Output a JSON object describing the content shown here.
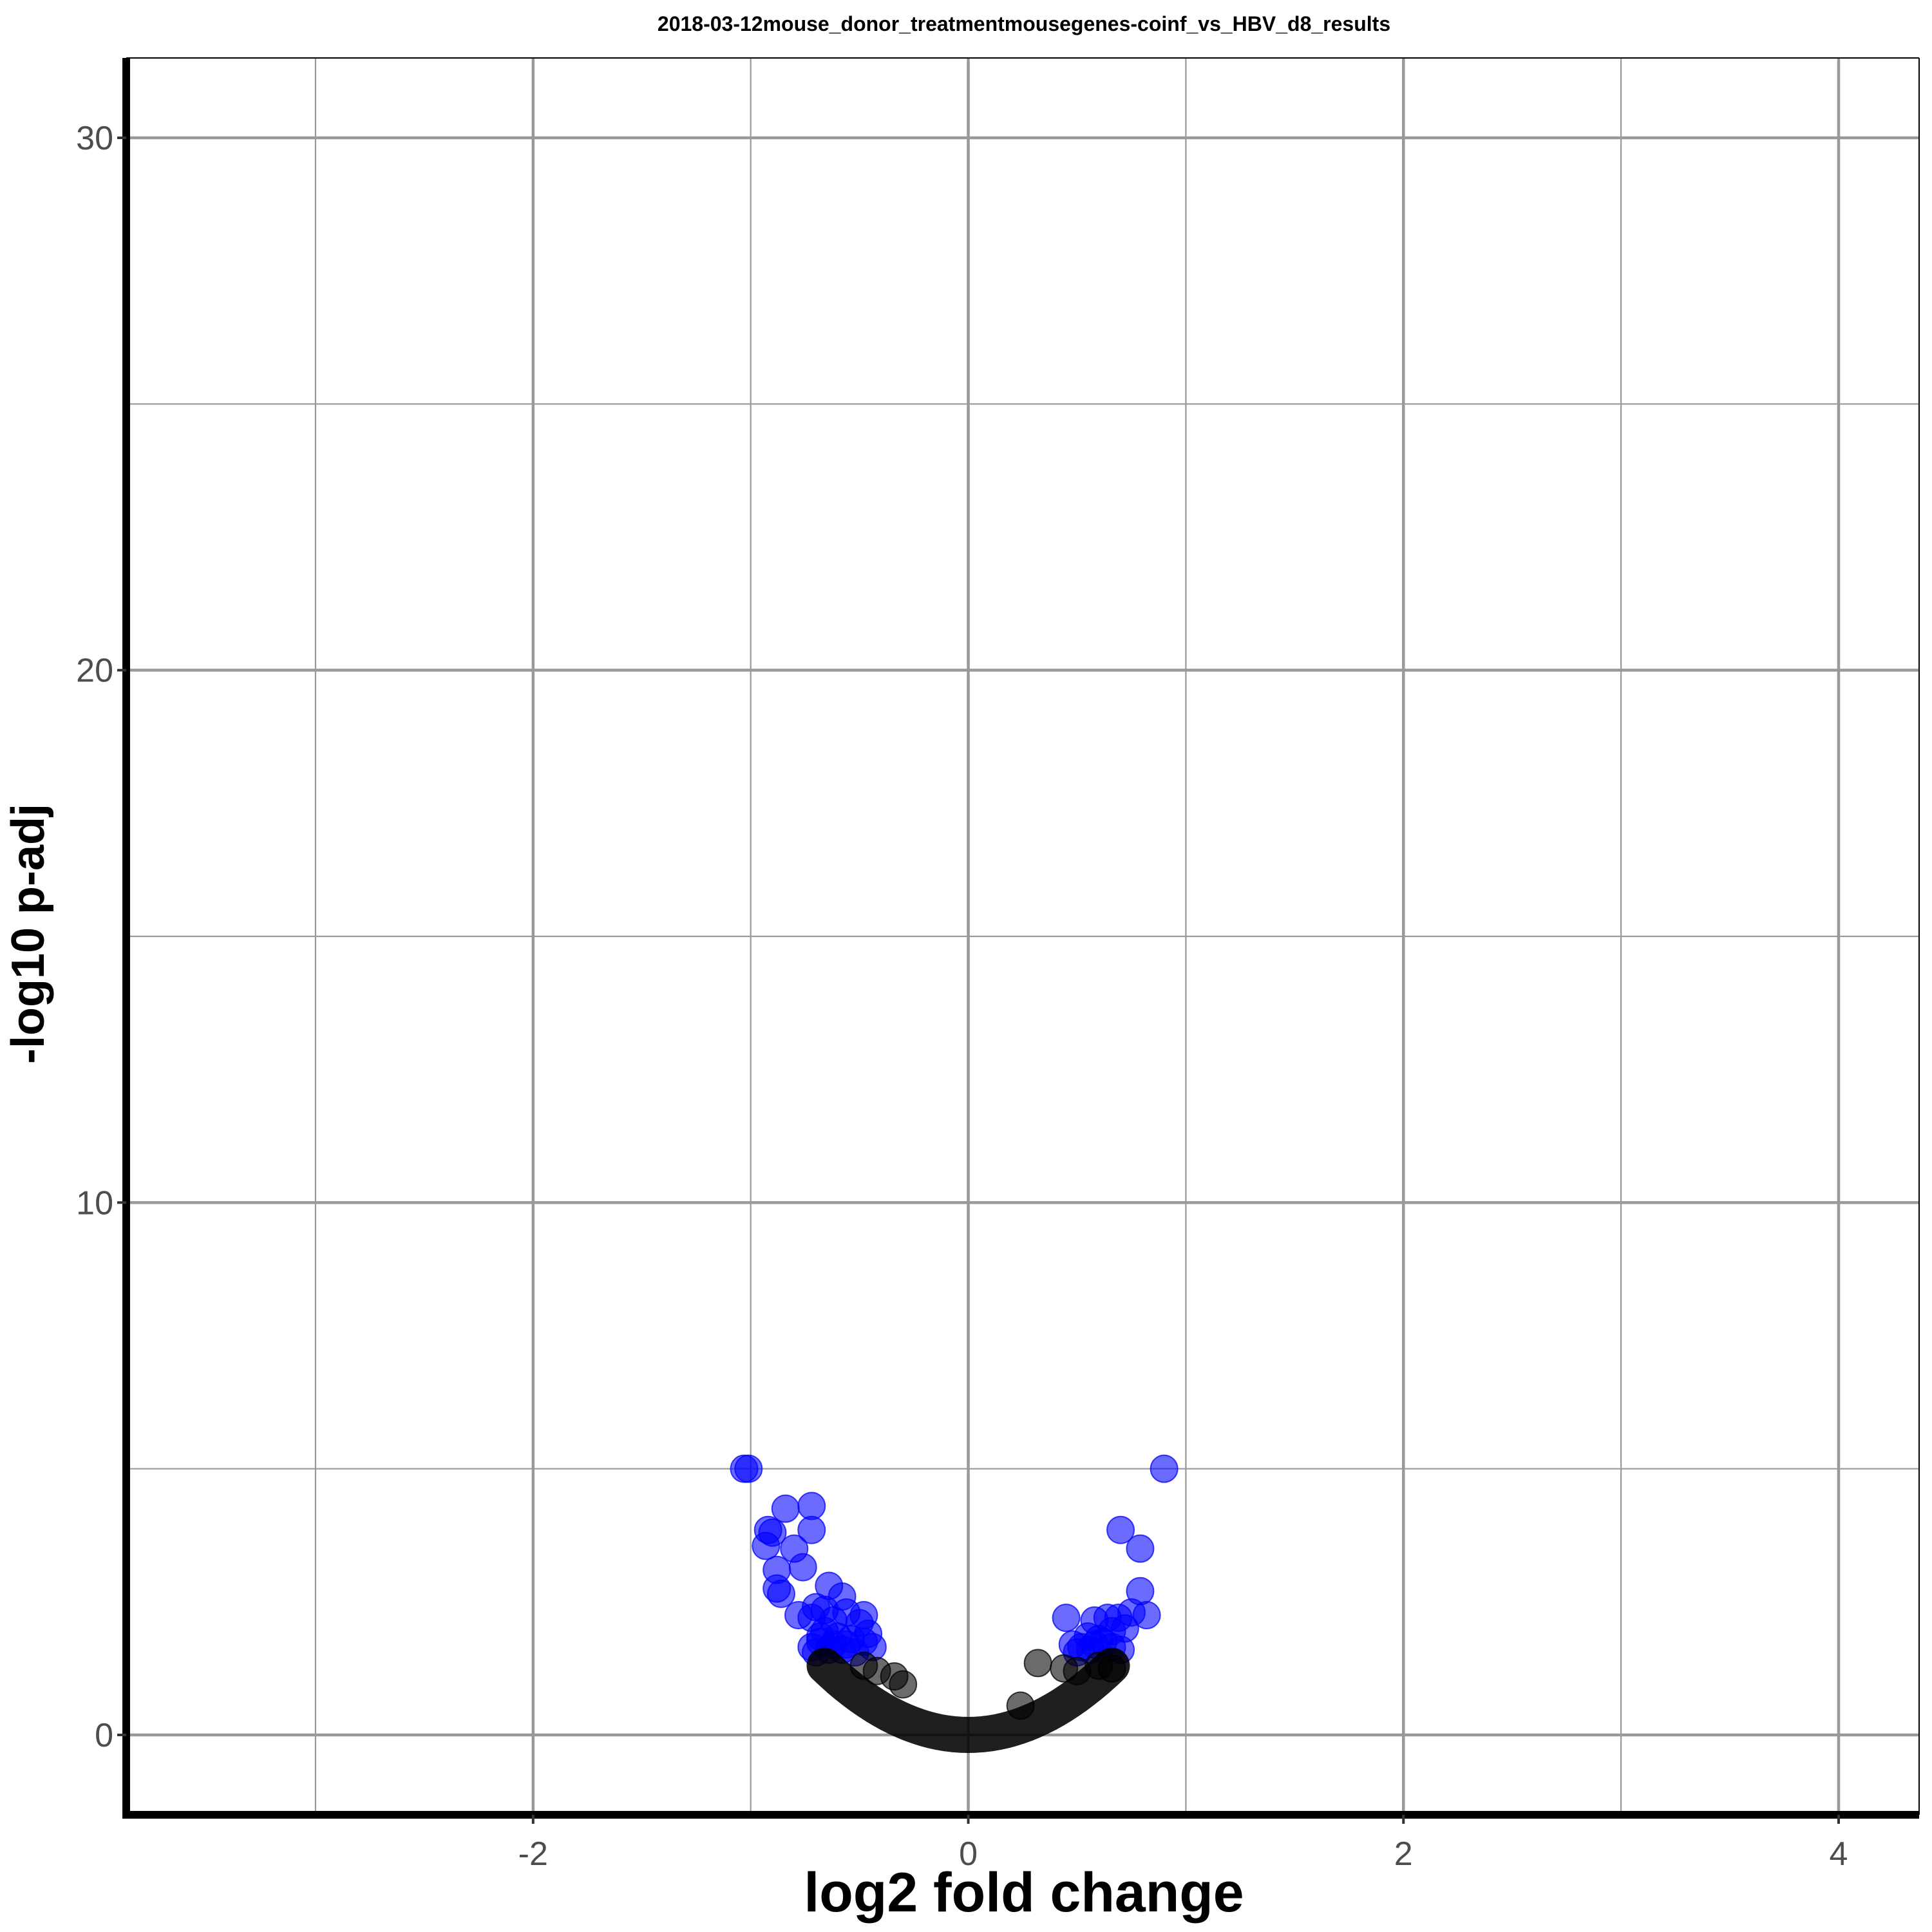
{
  "chart_data": {
    "type": "scatter",
    "title": "2018-03-12mouse_donor_treatmentmousegenes-coinf_vs_HBV_d8_results",
    "xlabel": "log2 fold change",
    "ylabel": "-log10 p-adj",
    "xlim": [
      -3.87,
      4.37
    ],
    "ylim": [
      -1.5,
      31.5
    ],
    "x_ticks": [
      -2,
      0,
      2,
      4
    ],
    "x_tick_labels": [
      "-2",
      "0",
      "2",
      "4"
    ],
    "y_ticks": [
      0,
      10,
      20,
      30
    ],
    "y_tick_labels": [
      "0",
      "10",
      "20",
      "30"
    ],
    "x_minor_gridlines": [
      -3,
      -1,
      1,
      3
    ],
    "y_minor_gridlines": [
      5,
      15,
      25
    ],
    "grid": true,
    "legend": "none",
    "colors": {
      "significant": "#0000ff",
      "not_significant": "#000000",
      "grid": "#999999",
      "axis": "#000000"
    },
    "series": [
      {
        "color": "#0000ff",
        "points": [
          [
            -1.03,
            5.0
          ],
          [
            -1.01,
            5.0
          ],
          [
            -0.92,
            3.85
          ],
          [
            -0.9,
            3.8
          ],
          [
            -0.93,
            3.55
          ],
          [
            -0.84,
            4.25
          ],
          [
            -0.72,
            4.3
          ],
          [
            -0.72,
            3.85
          ],
          [
            -0.8,
            3.5
          ],
          [
            -0.76,
            3.15
          ],
          [
            -0.88,
            3.1
          ],
          [
            -0.88,
            2.75
          ],
          [
            -0.86,
            2.65
          ],
          [
            -0.64,
            2.8
          ],
          [
            -0.58,
            2.6
          ],
          [
            -0.7,
            2.4
          ],
          [
            -0.78,
            2.25
          ],
          [
            -0.72,
            2.2
          ],
          [
            -0.66,
            2.35
          ],
          [
            -0.62,
            2.15
          ],
          [
            -0.56,
            2.3
          ],
          [
            -0.48,
            2.25
          ],
          [
            -0.5,
            2.1
          ],
          [
            -0.66,
            1.95
          ],
          [
            -0.6,
            1.85
          ],
          [
            -0.46,
            1.9
          ],
          [
            -0.68,
            1.75
          ],
          [
            -0.72,
            1.65
          ],
          [
            -0.56,
            1.7
          ],
          [
            -0.44,
            1.65
          ],
          [
            -0.52,
            1.55
          ],
          [
            -0.64,
            1.6
          ],
          [
            -0.7,
            1.55
          ],
          [
            -0.58,
            1.6
          ],
          [
            -0.48,
            1.75
          ],
          [
            -0.62,
            1.7
          ],
          [
            -0.54,
            1.8
          ],
          [
            -0.68,
            1.85
          ],
          [
            0.9,
            5.0
          ],
          [
            0.7,
            3.85
          ],
          [
            0.79,
            3.5
          ],
          [
            0.79,
            2.7
          ],
          [
            0.82,
            2.25
          ],
          [
            0.75,
            2.3
          ],
          [
            0.69,
            2.2
          ],
          [
            0.64,
            2.2
          ],
          [
            0.58,
            2.15
          ],
          [
            0.45,
            2.2
          ],
          [
            0.72,
            2.0
          ],
          [
            0.66,
            1.95
          ],
          [
            0.55,
            1.85
          ],
          [
            0.6,
            1.8
          ],
          [
            0.48,
            1.7
          ],
          [
            0.52,
            1.65
          ],
          [
            0.62,
            1.75
          ],
          [
            0.7,
            1.6
          ],
          [
            0.56,
            1.6
          ],
          [
            0.5,
            1.55
          ],
          [
            0.66,
            1.65
          ],
          [
            0.58,
            1.7
          ]
        ]
      },
      {
        "color": "#000000",
        "points": [
          [
            0.32,
            1.35
          ],
          [
            -0.34,
            1.1
          ],
          [
            -0.48,
            1.3
          ],
          [
            -0.42,
            1.2
          ],
          [
            0.44,
            1.25
          ],
          [
            0.6,
            1.3
          ],
          [
            0.66,
            1.25
          ],
          [
            0.24,
            0.55
          ],
          [
            -0.3,
            0.95
          ],
          [
            0.5,
            1.2
          ]
        ],
        "envelope": {
          "x_range": [
            -0.66,
            0.66
          ],
          "y_at_x0": 0.0,
          "y_at_edge": 1.3,
          "fill": true
        }
      }
    ]
  }
}
